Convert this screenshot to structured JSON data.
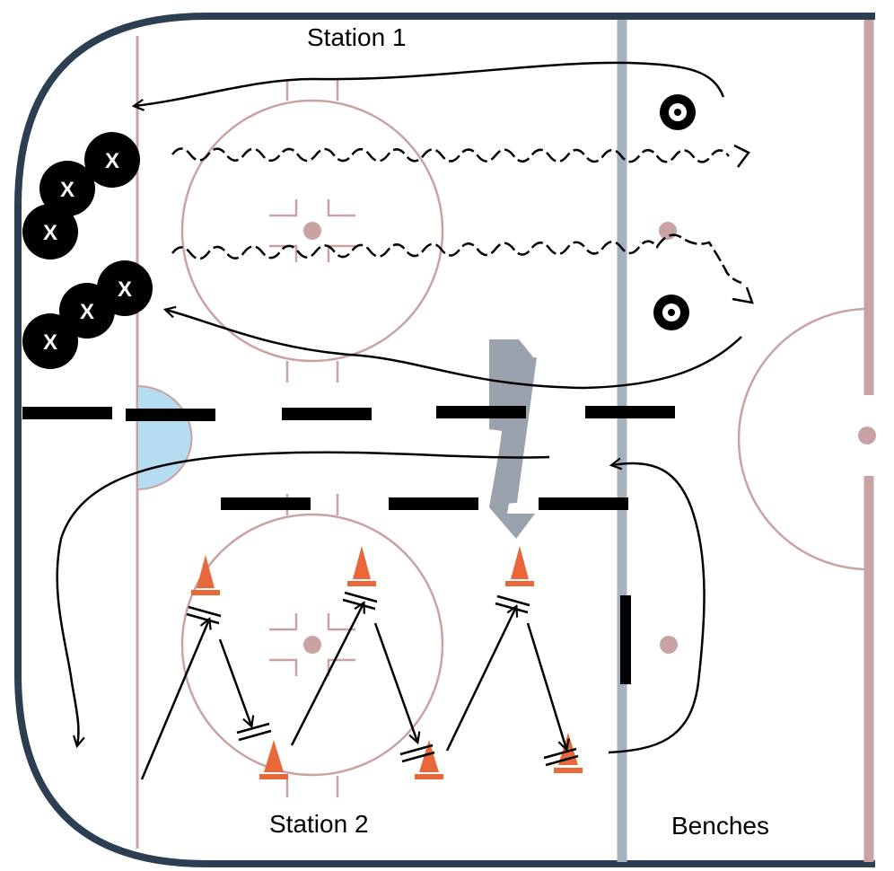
{
  "labels": {
    "station1": "Station 1",
    "station2": "Station 2",
    "benches": "Benches"
  },
  "player_marker": "X",
  "colors": {
    "boards": "#2b3e52",
    "red_line": "#c9a3a3",
    "blue_line": "#a6b2bc",
    "crease": "#b5dcf0",
    "cone": "#e8683a",
    "player": "#000000",
    "logo": "#9aa3ad"
  },
  "icons": [
    "player-icon",
    "cone-icon",
    "puck-tire-icon",
    "arrow-icon",
    "logo-icon"
  ]
}
